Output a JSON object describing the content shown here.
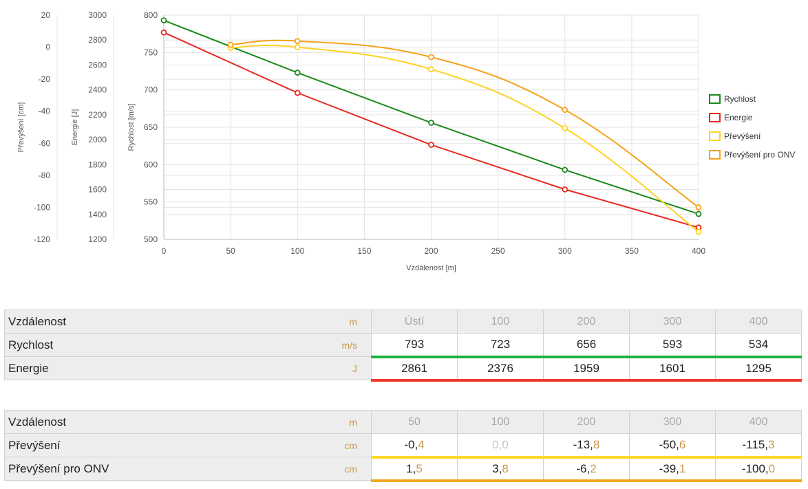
{
  "chart_data": {
    "type": "line",
    "xlabel": "Vzdálenost [m]",
    "xlim": [
      0,
      400
    ],
    "xticks": [
      0,
      50,
      100,
      150,
      200,
      250,
      300,
      350,
      400
    ],
    "axes": [
      {
        "id": "velocity",
        "label": "Rychlost [m/s]",
        "ylim": [
          500,
          800
        ],
        "ticks": [
          500,
          550,
          600,
          650,
          700,
          750,
          800
        ]
      },
      {
        "id": "energy",
        "label": "Energie [J]",
        "ylim": [
          1200,
          3000
        ],
        "ticks": [
          1200,
          1400,
          1600,
          1800,
          2000,
          2200,
          2400,
          2600,
          2800,
          3000
        ]
      },
      {
        "id": "drop",
        "label": "Převýšení [cm]",
        "ylim": [
          -120,
          20
        ],
        "ticks": [
          -120,
          -100,
          -80,
          -60,
          -40,
          -20,
          0,
          20
        ]
      }
    ],
    "grid": true,
    "legend_position": "right",
    "series": [
      {
        "name": "Rychlost",
        "axis": "velocity",
        "color": "#1a8a1a",
        "smooth": false,
        "x": [
          0,
          100,
          200,
          300,
          400
        ],
        "y": [
          793,
          723,
          656,
          593,
          534
        ]
      },
      {
        "name": "Energie",
        "axis": "energy",
        "color": "#e8281e",
        "smooth": false,
        "x": [
          0,
          100,
          200,
          300,
          400
        ],
        "y": [
          2861,
          2376,
          1959,
          1601,
          1295
        ]
      },
      {
        "name": "Převýšení",
        "axis": "drop",
        "color": "#ffd21f",
        "smooth": true,
        "x": [
          50,
          100,
          200,
          300,
          400
        ],
        "y": [
          -0.4,
          0.0,
          -13.8,
          -50.6,
          -115.3
        ]
      },
      {
        "name": "Převýšení pro ONV",
        "axis": "drop",
        "color": "#f5a31a",
        "smooth": true,
        "x": [
          50,
          100,
          200,
          300,
          400
        ],
        "y": [
          1.5,
          3.8,
          -6.2,
          -39.1,
          -100.0
        ]
      }
    ]
  },
  "table1": {
    "header": {
      "label": "Vzdálenost",
      "unit": "m",
      "cols": [
        "Ústí",
        "100",
        "200",
        "300",
        "400"
      ]
    },
    "rows": [
      {
        "label": "Rychlost",
        "unit": "m/s",
        "color": "#1db33a",
        "values": [
          {
            "int": "793",
            "frac": ""
          },
          {
            "int": "723",
            "frac": ""
          },
          {
            "int": "656",
            "frac": ""
          },
          {
            "int": "593",
            "frac": ""
          },
          {
            "int": "534",
            "frac": ""
          }
        ]
      },
      {
        "label": "Energie",
        "unit": "J",
        "color": "#ee3a2c",
        "values": [
          {
            "int": "2861",
            "frac": ""
          },
          {
            "int": "2376",
            "frac": ""
          },
          {
            "int": "1959",
            "frac": ""
          },
          {
            "int": "1601",
            "frac": ""
          },
          {
            "int": "1295",
            "frac": ""
          }
        ]
      }
    ]
  },
  "table2": {
    "header": {
      "label": "Vzdálenost",
      "unit": "m",
      "cols": [
        "50",
        "100",
        "200",
        "300",
        "400"
      ]
    },
    "rows": [
      {
        "label": "Převýšení",
        "unit": "cm",
        "color": "#ffd930",
        "values": [
          {
            "int": "-0,",
            "frac": "4"
          },
          {
            "int": "0,0",
            "frac": "",
            "muted": true
          },
          {
            "int": "-13,",
            "frac": "8"
          },
          {
            "int": "-50,",
            "frac": "6"
          },
          {
            "int": "-115,",
            "frac": "3"
          }
        ]
      },
      {
        "label": "Převýšení pro ONV",
        "unit": "cm",
        "color": "#f0a81c",
        "values": [
          {
            "int": "1,",
            "frac": "5"
          },
          {
            "int": "3,",
            "frac": "8"
          },
          {
            "int": "-6,",
            "frac": "2"
          },
          {
            "int": "-39,",
            "frac": "1"
          },
          {
            "int": "-100,",
            "frac": "0"
          }
        ]
      }
    ]
  }
}
